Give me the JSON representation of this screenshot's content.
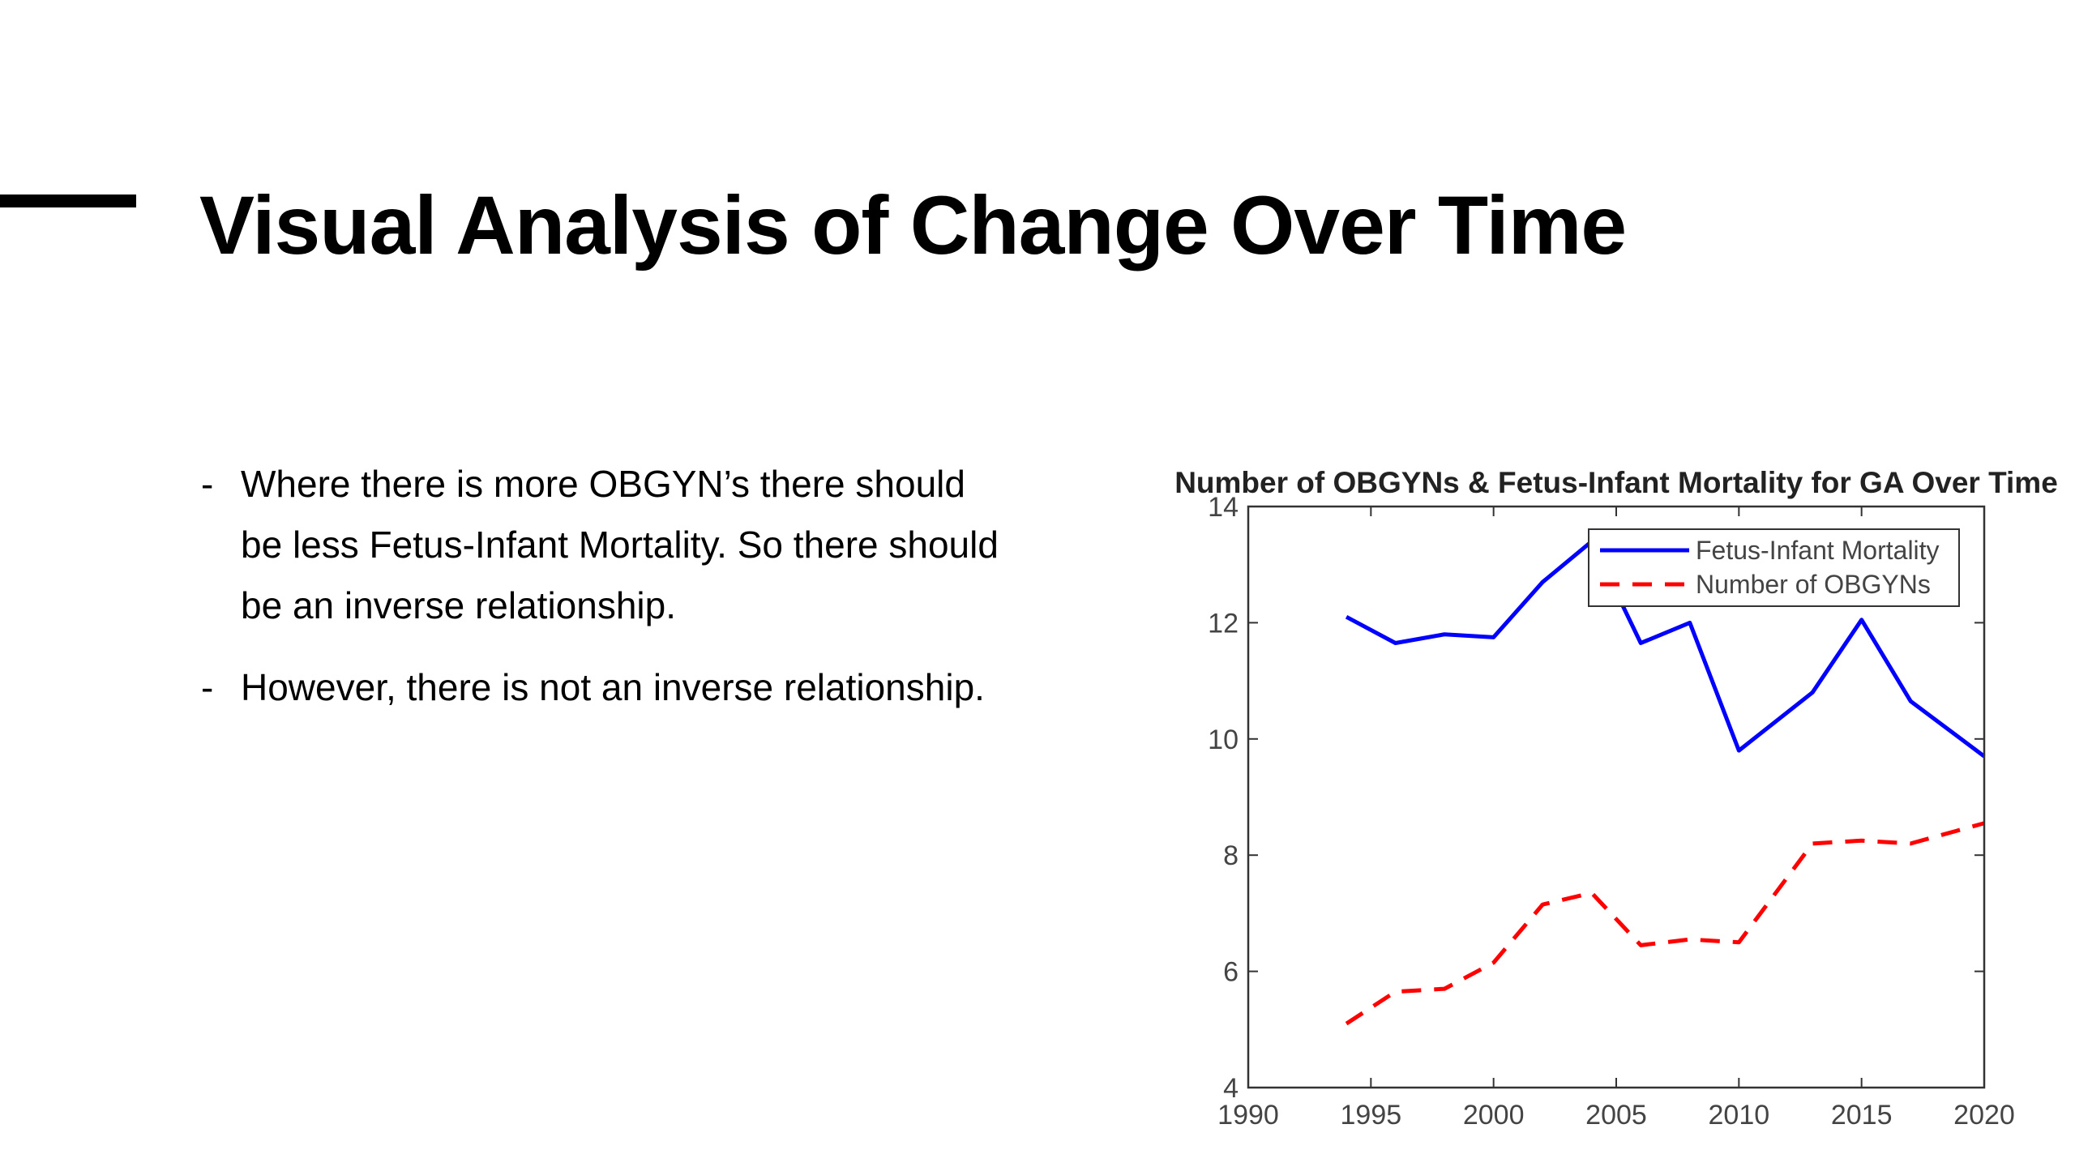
{
  "header": {
    "title": "Visual Analysis of Change Over Time"
  },
  "bullets": [
    "Where there is more OBGYN’s there should be less Fetus-Infant Mortality. So there should be an inverse relationship.",
    "However, there is not an inverse relationship."
  ],
  "chart_data": {
    "type": "line",
    "title": "Number of OBGYNs & Fetus-Infant Mortality for GA Over Time",
    "x": [
      1994,
      1996,
      1998,
      2000,
      2002,
      2004,
      2006,
      2008,
      2010,
      2013,
      2015,
      2017,
      2020
    ],
    "series": [
      {
        "name": "Fetus-Infant Mortality",
        "color": "#0000ff",
        "dash": false,
        "values": [
          12.1,
          11.65,
          11.8,
          11.75,
          12.7,
          13.4,
          11.65,
          12.0,
          9.8,
          10.8,
          12.05,
          10.65,
          9.7
        ]
      },
      {
        "name": "Number of OBGYNs",
        "color": "#ff0000",
        "dash": true,
        "values": [
          5.1,
          5.65,
          5.7,
          6.15,
          7.15,
          7.35,
          6.45,
          6.55,
          6.5,
          8.2,
          8.25,
          8.2,
          8.55
        ]
      }
    ],
    "xlim": [
      1990,
      2020
    ],
    "xticks": [
      1990,
      1995,
      2000,
      2005,
      2010,
      2015,
      2020
    ],
    "ylim": [
      4,
      14
    ],
    "yticks": [
      4,
      6,
      8,
      10,
      12,
      14
    ],
    "legend": "top-right"
  }
}
